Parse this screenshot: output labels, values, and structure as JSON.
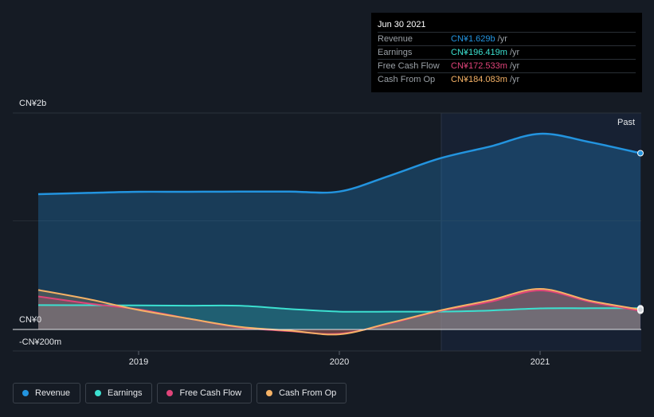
{
  "tooltip": {
    "date": "Jun 30 2021",
    "rows": [
      {
        "label": "Revenue",
        "value": "CN¥1.629b",
        "unit": "/yr",
        "color": "#2394df"
      },
      {
        "label": "Earnings",
        "value": "CN¥196.419m",
        "unit": "/yr",
        "color": "#3ce0d0"
      },
      {
        "label": "Free Cash Flow",
        "value": "CN¥172.533m",
        "unit": "/yr",
        "color": "#e0447a"
      },
      {
        "label": "Cash From Op",
        "value": "CN¥184.083m",
        "unit": "/yr",
        "color": "#f5b266"
      }
    ]
  },
  "past_label": "Past",
  "legend": [
    {
      "label": "Revenue",
      "color": "#2394df"
    },
    {
      "label": "Earnings",
      "color": "#3ce0d0"
    },
    {
      "label": "Free Cash Flow",
      "color": "#e0447a"
    },
    {
      "label": "Cash From Op",
      "color": "#f5b266"
    }
  ],
  "chart_data": {
    "type": "line",
    "y_tick_labels": [
      "CN¥2b",
      "CN¥0",
      "-CN¥200m"
    ],
    "x_tick_labels": [
      "2019",
      "2020",
      "2021"
    ],
    "ylim": [
      -200,
      2000
    ],
    "y_unit": "CN¥m",
    "xlim": [
      2018.5,
      2021.5
    ],
    "past_region_start": 2020.5,
    "series": [
      {
        "name": "Revenue",
        "color": "#2394df",
        "fill": true,
        "x": [
          2018.5,
          2018.75,
          2019.0,
          2019.25,
          2019.5,
          2019.75,
          2020.0,
          2020.25,
          2020.5,
          2020.75,
          2021.0,
          2021.25,
          2021.5
        ],
        "y": [
          1250,
          1262,
          1272,
          1272,
          1274,
          1274,
          1274,
          1420,
          1580,
          1690,
          1808,
          1730,
          1629
        ]
      },
      {
        "name": "Earnings",
        "color": "#3ce0d0",
        "fill": true,
        "x": [
          2018.5,
          2018.75,
          2019.0,
          2019.25,
          2019.5,
          2019.75,
          2020.0,
          2020.25,
          2020.5,
          2020.75,
          2021.0,
          2021.25,
          2021.5
        ],
        "y": [
          225,
          224,
          222,
          220,
          220,
          190,
          165,
          165,
          165,
          175,
          195,
          196,
          196
        ]
      },
      {
        "name": "Free Cash Flow",
        "color": "#e0447a",
        "fill": true,
        "x": [
          2018.5,
          2018.75,
          2019.0,
          2019.25,
          2019.5,
          2019.75,
          2020.0,
          2020.25,
          2020.5,
          2020.75,
          2021.0,
          2021.25,
          2021.5
        ],
        "y": [
          305,
          240,
          185,
          100,
          20,
          -15,
          -40,
          55,
          170,
          255,
          360,
          255,
          172
        ]
      },
      {
        "name": "Cash From Op",
        "color": "#f5b266",
        "fill": true,
        "x": [
          2018.5,
          2018.75,
          2019.0,
          2019.25,
          2019.5,
          2019.75,
          2020.0,
          2020.25,
          2020.5,
          2020.75,
          2021.0,
          2021.25,
          2021.5
        ],
        "y": [
          365,
          280,
          180,
          100,
          25,
          -10,
          -45,
          60,
          175,
          270,
          375,
          265,
          184
        ]
      }
    ]
  }
}
